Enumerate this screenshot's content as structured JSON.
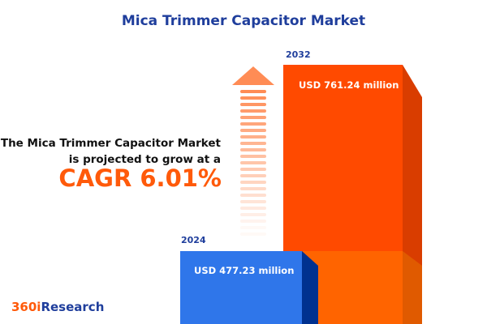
{
  "title": "Mica Trimmer Capacitor Market",
  "description_line1": "The Mica Trimmer Capacitor Market",
  "description_line2": "is projected to grow at a",
  "cagr": "CAGR 6.01%",
  "logo": {
    "prefix": "360i",
    "suffix": "Research"
  },
  "colors": {
    "blue_front": "#2f76ea",
    "blue_side": "#00318f",
    "orange_front": "#ff4a00",
    "orange_side": "#d93d00",
    "orange_lower": "#ff6400",
    "orange_lower_side": "#e05a00",
    "arrow": "#ff8c55",
    "title": "#1f3e9c"
  },
  "chart_data": {
    "type": "bar",
    "categories": [
      "2024",
      "2032"
    ],
    "values": [
      477.23,
      761.24
    ],
    "unit": "USD million",
    "labels": [
      "USD 477.23 million",
      "USD 761.24 million"
    ],
    "growth_arrow": true
  }
}
